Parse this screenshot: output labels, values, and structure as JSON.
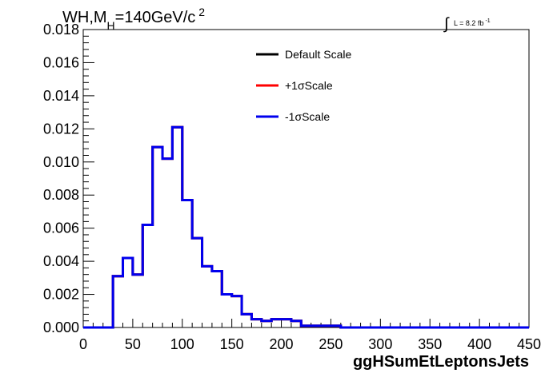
{
  "chart_data": {
    "type": "histogram",
    "title": {
      "main": "WH,M",
      "sub": "H",
      "rest": "=140GeV/c",
      "sup": "2"
    },
    "lumi": {
      "integral": "∫",
      "text": "L = 8.2 fb",
      "sup": "-1"
    },
    "xlabel": "ggHSumEtLeptonsJets",
    "ylabel": "",
    "xlim": [
      0,
      450
    ],
    "ylim": [
      0,
      0.018
    ],
    "x_ticks": [
      "0",
      "50",
      "100",
      "150",
      "200",
      "250",
      "300",
      "350",
      "400",
      "450"
    ],
    "y_ticks": [
      "0.000",
      "0.002",
      "0.004",
      "0.006",
      "0.008",
      "0.010",
      "0.012",
      "0.014",
      "0.016",
      "0.018"
    ],
    "bin_width": 10,
    "bin_edges_start": 0,
    "grid": false,
    "legend_position": "top-center",
    "series": [
      {
        "name": "Default Scale",
        "color": "#000000",
        "values": [
          0,
          0,
          0,
          0.0031,
          0.0042,
          0.0032,
          0.0062,
          0.0109,
          0.0102,
          0.0121,
          0.0077,
          0.0054,
          0.0037,
          0.0034,
          0.002,
          0.0019,
          0.0008,
          0.0005,
          0.0004,
          0.0005,
          0.0005,
          0.0004,
          0.0001,
          0.0001,
          0.0001,
          0.0001,
          0.0,
          0.0,
          0.0,
          0.0,
          0.0,
          0.0,
          0.0,
          0.0,
          0.0,
          0.0,
          0.0,
          0.0,
          0.0,
          0.0,
          0.0,
          0.0,
          0.0,
          0.0,
          0.0
        ]
      },
      {
        "name": "+1σScale",
        "color": "#ff0000",
        "values": [
          0,
          0,
          0,
          0.0031,
          0.0042,
          0.0032,
          0.0062,
          0.0109,
          0.0102,
          0.0121,
          0.0077,
          0.0054,
          0.0037,
          0.0034,
          0.002,
          0.0019,
          0.0008,
          0.0005,
          0.0004,
          0.0005,
          0.0005,
          0.0004,
          0.0001,
          0.0001,
          0.0001,
          0.0001,
          0.0,
          0.0,
          0.0,
          0.0,
          0.0,
          0.0,
          0.0,
          0.0,
          0.0,
          0.0,
          0.0,
          0.0,
          0.0,
          0.0,
          0.0,
          0.0,
          0.0,
          0.0,
          0.0
        ]
      },
      {
        "name": "-1σScale",
        "color": "#0000ee",
        "values": [
          0,
          0,
          0,
          0.0031,
          0.0042,
          0.0032,
          0.0062,
          0.0109,
          0.0102,
          0.0121,
          0.0077,
          0.0054,
          0.0037,
          0.0034,
          0.002,
          0.0019,
          0.0008,
          0.0005,
          0.0004,
          0.0005,
          0.0005,
          0.0004,
          0.0001,
          0.0001,
          0.0001,
          0.0001,
          0.0,
          0.0,
          0.0,
          0.0,
          0.0,
          0.0,
          0.0,
          0.0,
          0.0,
          0.0,
          0.0,
          0.0,
          0.0,
          0.0,
          0.0,
          0.0,
          0.0,
          0.0,
          0.0
        ]
      }
    ]
  }
}
